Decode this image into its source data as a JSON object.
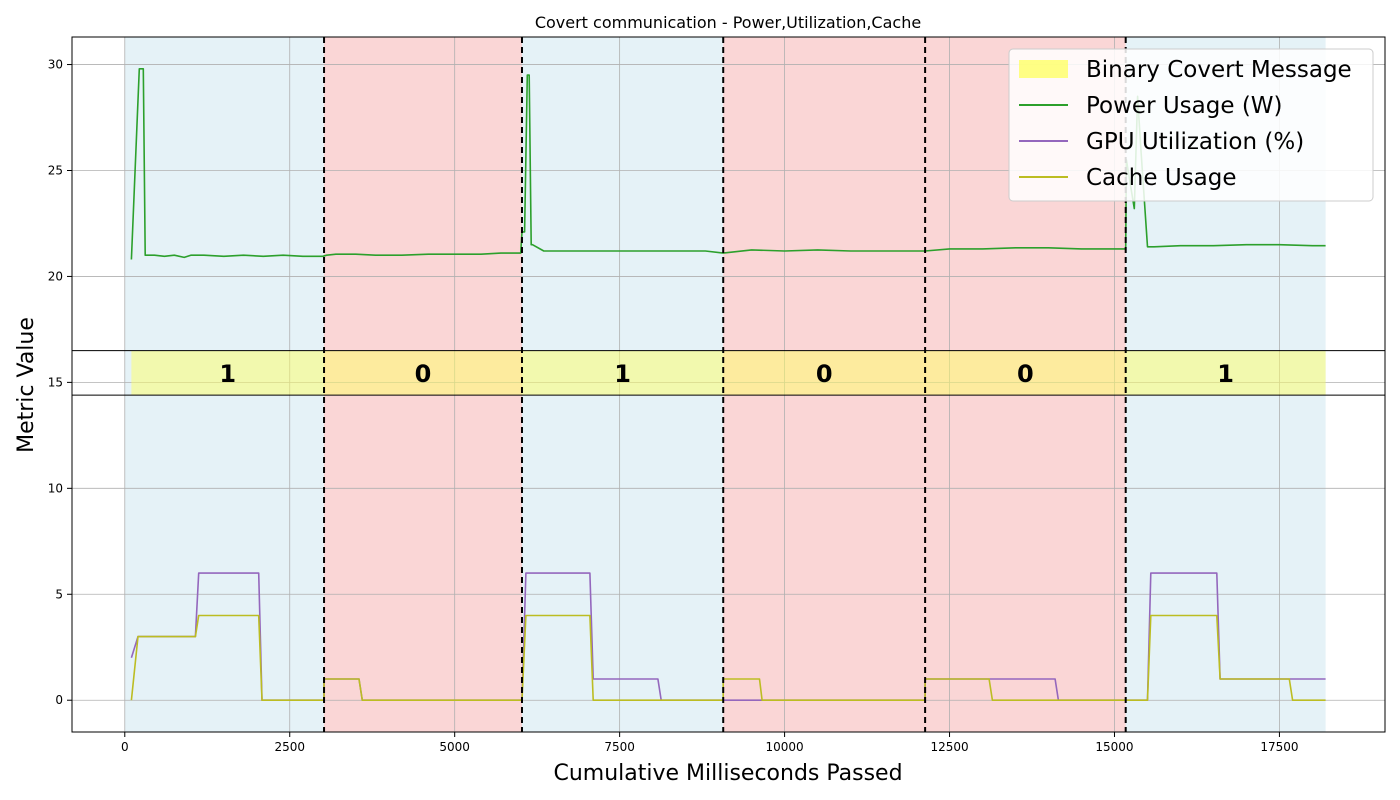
{
  "chart_data": {
    "type": "line",
    "title": "Covert communication - Power,Utilization,Cache",
    "xlabel": "Cumulative Milliseconds Passed",
    "ylabel": "Metric Value",
    "xlim": [
      -800,
      19100
    ],
    "ylim": [
      -1.5,
      31.3
    ],
    "xticks": [
      0,
      2500,
      5000,
      7500,
      10000,
      12500,
      15000,
      17500
    ],
    "yticks": [
      0,
      5,
      10,
      15,
      20,
      25,
      30
    ],
    "grid": true,
    "legend_position": "top-right",
    "legend": [
      "Binary Covert Message",
      "Power Usage (W)",
      "GPU Utilization (%)",
      "Cache Usage"
    ],
    "bit_band": {
      "name": "Binary Covert Message",
      "y_range": [
        14.4,
        16.5
      ],
      "color": "#ffff66",
      "bits": [
        {
          "label": "1",
          "start": 100,
          "end": 3020
        },
        {
          "label": "0",
          "start": 3020,
          "end": 6020
        },
        {
          "label": "1",
          "start": 6020,
          "end": 9070
        },
        {
          "label": "0",
          "start": 9070,
          "end": 12130
        },
        {
          "label": "0",
          "start": 12130,
          "end": 15170
        },
        {
          "label": "1",
          "start": 15170,
          "end": 18200
        }
      ]
    },
    "regions": [
      {
        "bit": "1",
        "start": 0,
        "end": 3020,
        "color": "#add8e6"
      },
      {
        "bit": "0",
        "start": 3020,
        "end": 6020,
        "color": "#f08080"
      },
      {
        "bit": "1",
        "start": 6020,
        "end": 9070,
        "color": "#add8e6"
      },
      {
        "bit": "0",
        "start": 9070,
        "end": 12130,
        "color": "#f08080"
      },
      {
        "bit": "0",
        "start": 12130,
        "end": 15170,
        "color": "#f08080"
      },
      {
        "bit": "1",
        "start": 15170,
        "end": 18200,
        "color": "#add8e6"
      }
    ],
    "boundaries": [
      3020,
      6020,
      9070,
      12130,
      15170
    ],
    "series": [
      {
        "name": "Power Usage (W)",
        "color": "#2ca02c",
        "x": [
          100,
          220,
          250,
          280,
          310,
          450,
          600,
          750,
          900,
          1000,
          1200,
          1500,
          1800,
          2100,
          2400,
          2700,
          3000,
          3060,
          3200,
          3500,
          3800,
          4200,
          4600,
          5000,
          5400,
          5700,
          6000,
          6020,
          6060,
          6100,
          6130,
          6160,
          6180,
          6350,
          6500,
          7000,
          7500,
          8000,
          8500,
          8800,
          9070,
          9500,
          10000,
          10500,
          11000,
          11500,
          12000,
          12130,
          12500,
          13000,
          13500,
          14000,
          14500,
          15000,
          15170,
          15180,
          15300,
          15350,
          15400,
          15500,
          15600,
          16000,
          16500,
          17000,
          17500,
          18000,
          18200
        ],
        "y": [
          20.8,
          29.8,
          29.8,
          29.8,
          21.0,
          21.0,
          20.95,
          21.0,
          20.9,
          21.0,
          21.0,
          20.95,
          21.0,
          20.95,
          21.0,
          20.95,
          20.95,
          21.0,
          21.05,
          21.05,
          21.0,
          21.0,
          21.05,
          21.05,
          21.05,
          21.1,
          21.1,
          22.1,
          22.1,
          29.5,
          29.5,
          21.5,
          21.5,
          21.2,
          21.2,
          21.2,
          21.2,
          21.2,
          21.2,
          21.2,
          21.1,
          21.25,
          21.2,
          21.25,
          21.2,
          21.2,
          21.2,
          21.2,
          21.3,
          21.3,
          21.35,
          21.35,
          21.3,
          21.3,
          21.3,
          25.5,
          23.2,
          28.5,
          26.0,
          21.4,
          21.4,
          21.45,
          21.45,
          21.5,
          21.5,
          21.45,
          21.45
        ]
      },
      {
        "name": "GPU Utilization (%)",
        "color": "#9467bd",
        "x": [
          100,
          200,
          1070,
          1120,
          2030,
          2080,
          3020,
          3020,
          3550,
          3600,
          6020,
          6080,
          7050,
          7100,
          8080,
          8130,
          9070,
          9070,
          9620,
          9660,
          12130,
          12130,
          14100,
          14150,
          15170,
          15170,
          15500,
          15550,
          16550,
          16600,
          17650,
          17700,
          18200
        ],
        "y": [
          2,
          3,
          3,
          6,
          6,
          0,
          0,
          1,
          1,
          0,
          0,
          6,
          6,
          1,
          1,
          0,
          0,
          0,
          0,
          0,
          0,
          1,
          1,
          0,
          0,
          0,
          0,
          6,
          6,
          1,
          1,
          1,
          1
        ]
      },
      {
        "name": "Cache Usage",
        "color": "#bcbd22",
        "x": [
          100,
          200,
          1070,
          1120,
          2030,
          2080,
          3020,
          3020,
          3550,
          3600,
          6020,
          6080,
          7050,
          7100,
          8080,
          8130,
          9070,
          9070,
          9620,
          9660,
          12130,
          12130,
          13100,
          13150,
          15170,
          15170,
          15500,
          15550,
          16550,
          16600,
          17650,
          17700,
          18200
        ],
        "y": [
          0,
          3,
          3,
          4,
          4,
          0,
          0,
          1,
          1,
          0,
          0,
          4,
          4,
          0,
          0,
          0,
          0,
          1,
          1,
          0,
          0,
          1,
          1,
          0,
          0,
          0,
          0,
          4,
          4,
          1,
          1,
          0,
          0
        ]
      }
    ]
  }
}
